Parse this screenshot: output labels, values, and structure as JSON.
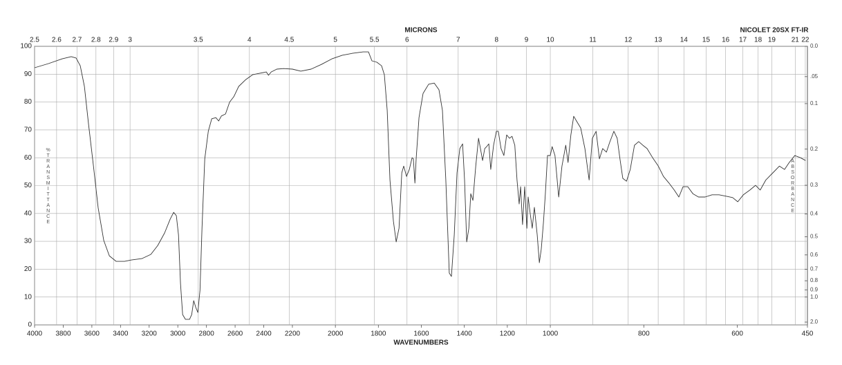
{
  "chart_data": {
    "type": "line",
    "title": "NICOLET 20SX FT-IR",
    "top_axis_label": "MICRONS",
    "x_label": "WAVENUMBERS",
    "y_label": "%TRANSMITTANCE",
    "y2_label": "ABSORBANCE",
    "color": "#333333",
    "grid": true,
    "xlim": [
      4000,
      450
    ],
    "xticks": [
      4000,
      3800,
      3600,
      3400,
      3200,
      3000,
      2800,
      2600,
      2400,
      2200,
      2000,
      1800,
      1600,
      1400,
      1200,
      1000,
      800,
      600,
      450
    ],
    "top_ticks": [
      2.5,
      2.6,
      2.7,
      2.8,
      2.9,
      3,
      3.5,
      4,
      4.5,
      5,
      5.5,
      6,
      7,
      8,
      9,
      10,
      11,
      12,
      13,
      14,
      15,
      16,
      17,
      18,
      19,
      21,
      22
    ],
    "ylim": [
      0,
      100
    ],
    "yticks": [
      0,
      10,
      20,
      30,
      40,
      50,
      60,
      70,
      80,
      90,
      100
    ],
    "y2ticks": [
      {
        "value": 0,
        "label": "0.0"
      },
      {
        "value": 0.05,
        "label": ".05"
      },
      0.1,
      0.2,
      0.3,
      0.4,
      0.5,
      0.6,
      0.7,
      0.8,
      0.9,
      {
        "value": 1,
        "label": "1.0"
      },
      {
        "value": 2,
        "label": "2.0"
      }
    ],
    "x": [
      4000,
      3903,
      3807,
      3744,
      3710,
      3681,
      3652,
      3623,
      3589,
      3556,
      3517,
      3478,
      3430,
      3372,
      3324,
      3251,
      3188,
      3140,
      3092,
      3053,
      3029,
      3010,
      2995,
      2981,
      2966,
      2947,
      2918,
      2903,
      2889,
      2874,
      2860,
      2845,
      2831,
      2812,
      2787,
      2763,
      2734,
      2715,
      2696,
      2667,
      2638,
      2609,
      2575,
      2527,
      2478,
      2430,
      2382,
      2367,
      2348,
      2309,
      2261,
      2200,
      2161,
      2113,
      2065,
      2016,
      1968,
      1920,
      1871,
      1846,
      1830,
      1807,
      1785,
      1772,
      1759,
      1746,
      1730,
      1717,
      1704,
      1691,
      1682,
      1669,
      1656,
      1643,
      1637,
      1630,
      1624,
      1611,
      1592,
      1566,
      1540,
      1518,
      1502,
      1486,
      1470,
      1460,
      1447,
      1434,
      1421,
      1408,
      1399,
      1389,
      1379,
      1370,
      1360,
      1347,
      1334,
      1325,
      1315,
      1305,
      1296,
      1286,
      1277,
      1264,
      1251,
      1242,
      1229,
      1216,
      1203,
      1190,
      1178,
      1165,
      1155,
      1145,
      1138,
      1129,
      1119,
      1109,
      1103,
      1093,
      1084,
      1074,
      1061,
      1051,
      1042,
      1032,
      1023,
      1013,
      1000,
      996,
      990,
      982,
      975,
      967,
      962,
      956,
      950,
      944,
      935,
      926,
      917,
      910,
      902,
      895,
      888,
      880,
      873,
      864,
      857,
      851,
      845,
      837,
      829,
      820,
      811,
      802,
      793,
      781,
      769,
      758,
      746,
      735,
      725,
      716,
      706,
      695,
      683,
      669,
      654,
      639,
      624,
      610,
      599,
      587,
      573,
      561,
      551,
      539,
      524,
      510,
      499,
      489,
      477,
      465,
      454
    ],
    "values": [
      92.3,
      93.8,
      95.5,
      96.3,
      95.8,
      93,
      85.6,
      72,
      57,
      42,
      30.3,
      24.8,
      22.8,
      22.8,
      23.3,
      23.8,
      25.3,
      28.5,
      33,
      38,
      40.4,
      39.2,
      32.3,
      14.9,
      3.7,
      2,
      2,
      3.7,
      8.7,
      6.2,
      4.5,
      12.4,
      34.7,
      59.6,
      69.5,
      74,
      74.4,
      73.2,
      75,
      75.7,
      80,
      81.9,
      85.6,
      88,
      89.8,
      90.3,
      90.8,
      89.6,
      90.8,
      91.8,
      92,
      91.8,
      91.1,
      91.8,
      93.5,
      95.5,
      96.8,
      97.5,
      98,
      98,
      94.8,
      94.3,
      93,
      89.8,
      77,
      52,
      37.2,
      29.8,
      34.7,
      54.6,
      57,
      53.3,
      55.8,
      60,
      59.6,
      50.9,
      59.6,
      74.4,
      83.1,
      86.4,
      86.8,
      84.4,
      77,
      52,
      18.6,
      17.4,
      32.3,
      54.6,
      63.3,
      65,
      52,
      29.8,
      34.7,
      47.1,
      44.7,
      57,
      67,
      63.3,
      59,
      63.3,
      64,
      65,
      55.8,
      64.5,
      69.5,
      69.5,
      63.3,
      60.8,
      68.2,
      67,
      67.7,
      64.5,
      52,
      43.4,
      49.6,
      36,
      49.6,
      34.7,
      45.9,
      39.7,
      34.7,
      42.2,
      32.3,
      22.3,
      27.3,
      36.7,
      47.1,
      60.8,
      60.8,
      64,
      60.8,
      45.9,
      57,
      64.5,
      58.3,
      68.2,
      74.9,
      73.2,
      70.7,
      63.3,
      52,
      67,
      69.5,
      59.6,
      63.3,
      62,
      65.5,
      69.5,
      67,
      59.6,
      52.6,
      51.6,
      55.8,
      64.5,
      65.8,
      64.5,
      63.3,
      60,
      57,
      53.3,
      50.9,
      48.4,
      45.9,
      49.6,
      49.6,
      47.1,
      45.9,
      45.9,
      46.7,
      46.7,
      46.2,
      45.7,
      44.2,
      46.7,
      48.4,
      50.1,
      48.4,
      52,
      54.6,
      57,
      55.8,
      58.3,
      60.8,
      60,
      59
    ]
  }
}
